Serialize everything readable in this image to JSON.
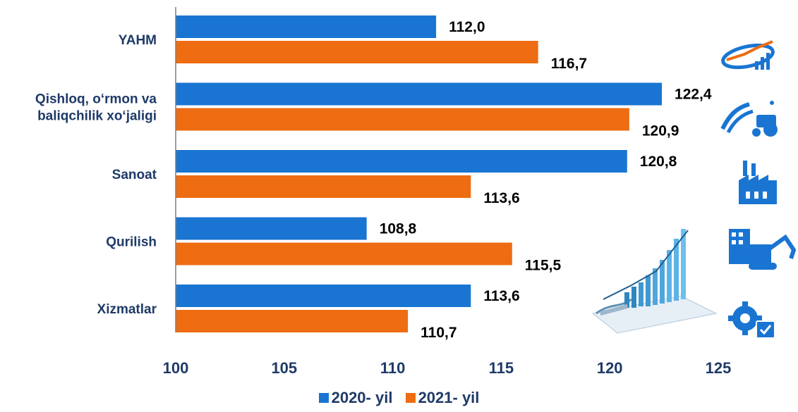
{
  "chart_data": {
    "type": "bar",
    "orientation": "horizontal",
    "categories": [
      [
        "YAHM"
      ],
      [
        "Qishloq, o‘rmon va",
        "baliqchilik xo‘jaligi"
      ],
      [
        "Sanoat"
      ],
      [
        "Qurilish"
      ],
      [
        "Xizmatlar"
      ]
    ],
    "series": [
      {
        "name": "2020- yil",
        "color": "#1a75d2",
        "values": [
          112.0,
          122.4,
          120.8,
          108.8,
          113.6
        ],
        "labels": [
          "112,0",
          "122,4",
          "120,8",
          "108,8",
          "113,6"
        ]
      },
      {
        "name": "2021- yil",
        "color": "#ee6c12",
        "values": [
          116.7,
          120.9,
          113.6,
          115.5,
          110.7
        ],
        "labels": [
          "116,7",
          "120,9",
          "113,6",
          "115,5",
          "110,7"
        ]
      }
    ],
    "xlim": [
      100,
      125
    ],
    "xticks": [
      "100",
      "105",
      "110",
      "115",
      "120",
      "125"
    ],
    "grid": false,
    "legend_position": "bottom"
  },
  "decorations": {
    "icons": [
      "economy-chart-icon",
      "agriculture-tractor-icon",
      "factory-icon",
      "construction-icon",
      "services-gear-icon"
    ],
    "illustration": "growth-bar-chart-illustration"
  }
}
